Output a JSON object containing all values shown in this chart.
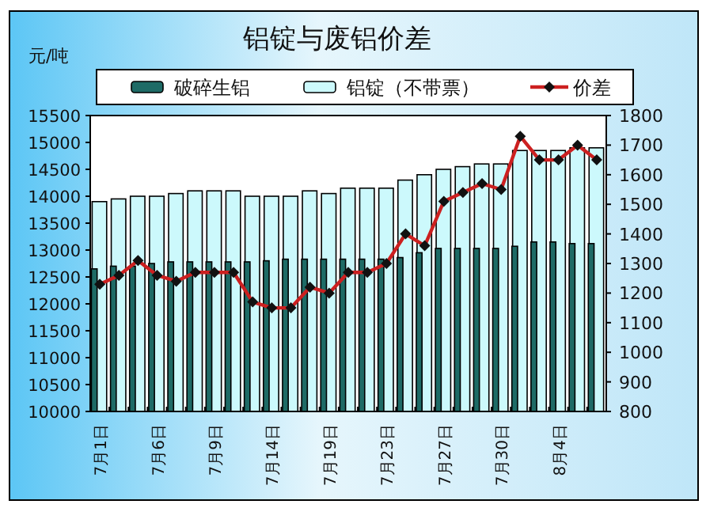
{
  "chart_data": {
    "type": "bar",
    "title": "铝锭与废铝价差",
    "ylabel": "元/吨",
    "categories": [
      "7月1日",
      null,
      null,
      "7月6日",
      null,
      null,
      "7月9日",
      null,
      null,
      "7月14日",
      null,
      null,
      "7月19日",
      null,
      null,
      "7月23日",
      null,
      null,
      "7月27日",
      null,
      null,
      "7月30日",
      null,
      null,
      "8月4日",
      null,
      null
    ],
    "series": [
      {
        "name": "破碎生铝",
        "type": "bar",
        "color": "#1e6b66",
        "values": [
          12650,
          12700,
          12700,
          12750,
          12780,
          12780,
          12780,
          12780,
          12780,
          12800,
          12830,
          12830,
          12830,
          12830,
          12830,
          12830,
          12860,
          12950,
          13030,
          13030,
          13030,
          13030,
          13070,
          13150,
          13150,
          13120,
          13120
        ]
      },
      {
        "name": "铝锭（不带票）",
        "type": "bar",
        "color": "#ccf9fc",
        "values": [
          13900,
          13950,
          14000,
          14000,
          14050,
          14100,
          14100,
          14100,
          14000,
          14000,
          14000,
          14100,
          14050,
          14150,
          14150,
          14150,
          14300,
          14400,
          14500,
          14550,
          14600,
          14600,
          14850,
          14850,
          14850,
          14900,
          14900
        ]
      },
      {
        "name": "价差",
        "type": "line",
        "axis": "y2",
        "color": "#cc2020",
        "values": [
          1230,
          1260,
          1310,
          1260,
          1240,
          1270,
          1270,
          1270,
          1170,
          1150,
          1150,
          1220,
          1200,
          1270,
          1270,
          1300,
          1400,
          1360,
          1510,
          1540,
          1570,
          1550,
          1730,
          1650,
          1650,
          1700,
          1650
        ]
      }
    ],
    "marker": "diamond",
    "ylim": [
      10000,
      15500
    ],
    "yticks": [
      10000,
      10500,
      11000,
      11500,
      12000,
      12500,
      13000,
      13500,
      14000,
      14500,
      15000,
      15500
    ],
    "y2lim": [
      800,
      1800
    ],
    "y2ticks": [
      800,
      900,
      1000,
      1100,
      1200,
      1300,
      1400,
      1500,
      1600,
      1700,
      1800
    ],
    "legend": "top",
    "grid": false
  }
}
